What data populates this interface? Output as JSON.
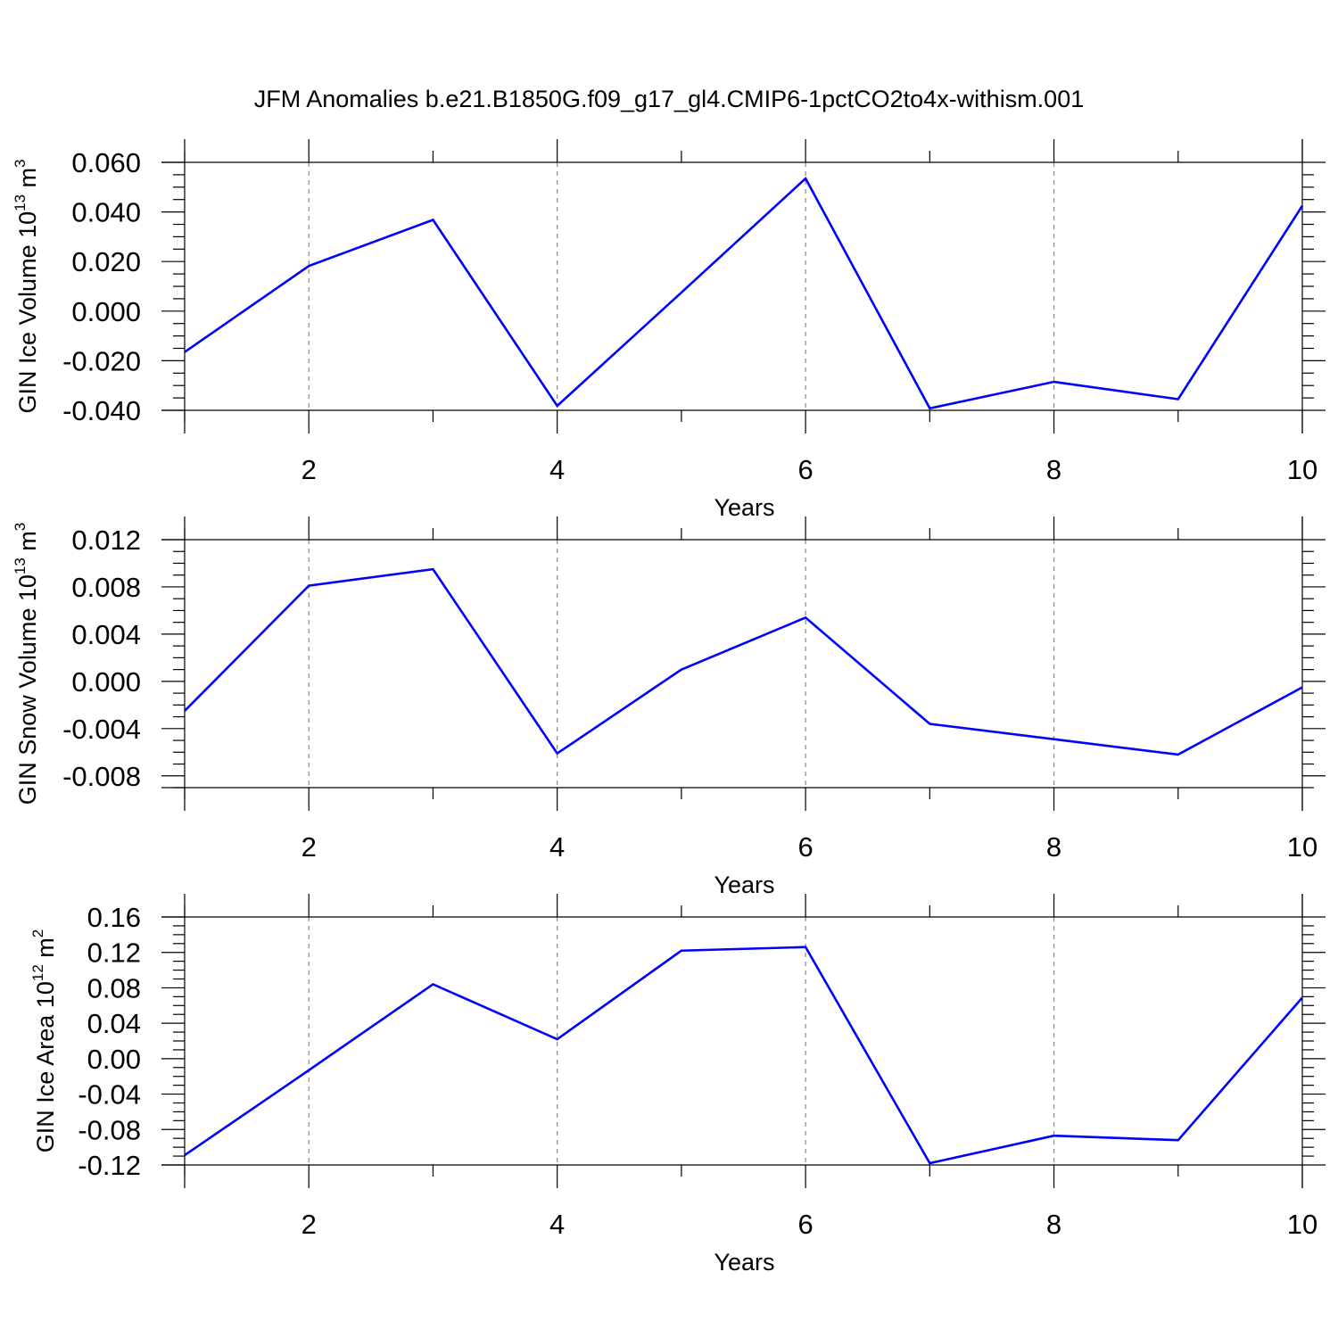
{
  "title": "JFM Anomalies b.e21.B1850G.f09_g17_gl4.CMIP6-1pctCO2to4x-withism.001",
  "colors": {
    "series": "#0000ff",
    "axis": "#000000",
    "grid": "#888888"
  },
  "chart_data": [
    {
      "type": "line",
      "ylabel": {
        "prefix": "GIN Ice Volume 10",
        "exponent": "13",
        "unit": "m",
        "unit_exponent": "3"
      },
      "xlabel": "Years",
      "xlim": [
        1,
        10
      ],
      "ylim": [
        -0.04,
        0.06
      ],
      "xticks": [
        "2",
        "4",
        "6",
        "8",
        "10"
      ],
      "yticks": [
        "0.060",
        "0.040",
        "0.020",
        "0.000",
        "-0.020",
        "-0.040"
      ],
      "grid": "vertical dashed at major x ticks",
      "x": [
        1,
        2,
        3,
        4,
        5,
        6,
        7,
        8,
        9,
        10
      ],
      "values": [
        -0.0165,
        0.0182,
        0.0368,
        -0.0382,
        0.0075,
        0.0535,
        -0.0392,
        -0.0285,
        -0.0355,
        0.0425
      ]
    },
    {
      "type": "line",
      "ylabel": {
        "prefix": "GIN Snow Volume 10",
        "exponent": "13",
        "unit": "m",
        "unit_exponent": "3"
      },
      "xlabel": "Years",
      "xlim": [
        1,
        10
      ],
      "ylim": [
        -0.009,
        0.012
      ],
      "xticks": [
        "2",
        "4",
        "6",
        "8",
        "10"
      ],
      "yticks": [
        "0.012",
        "0.008",
        "0.004",
        "0.000",
        "-0.004",
        "-0.008"
      ],
      "grid": "vertical dashed at major x ticks",
      "x": [
        1,
        2,
        3,
        4,
        5,
        6,
        7,
        8,
        9,
        10
      ],
      "values": [
        -0.0025,
        0.0081,
        0.0095,
        -0.0061,
        0.001,
        0.0054,
        -0.0036,
        -0.0049,
        -0.0062,
        -0.0005
      ]
    },
    {
      "type": "line",
      "ylabel": {
        "prefix": "GIN Ice Area 10",
        "exponent": "12",
        "unit": "m",
        "unit_exponent": "2"
      },
      "xlabel": "Years",
      "xlim": [
        1,
        10
      ],
      "ylim": [
        -0.12,
        0.16
      ],
      "xticks": [
        "2",
        "4",
        "6",
        "8",
        "10"
      ],
      "yticks": [
        "0.16",
        "0.12",
        "0.08",
        "0.04",
        "0.00",
        "-0.04",
        "-0.08",
        "-0.12"
      ],
      "grid": "vertical dashed at major x ticks",
      "x": [
        1,
        2,
        3,
        4,
        5,
        6,
        7,
        8,
        9,
        10
      ],
      "values": [
        -0.109,
        -0.013,
        0.084,
        0.022,
        0.122,
        0.126,
        -0.118,
        -0.087,
        -0.092,
        0.069
      ]
    }
  ]
}
